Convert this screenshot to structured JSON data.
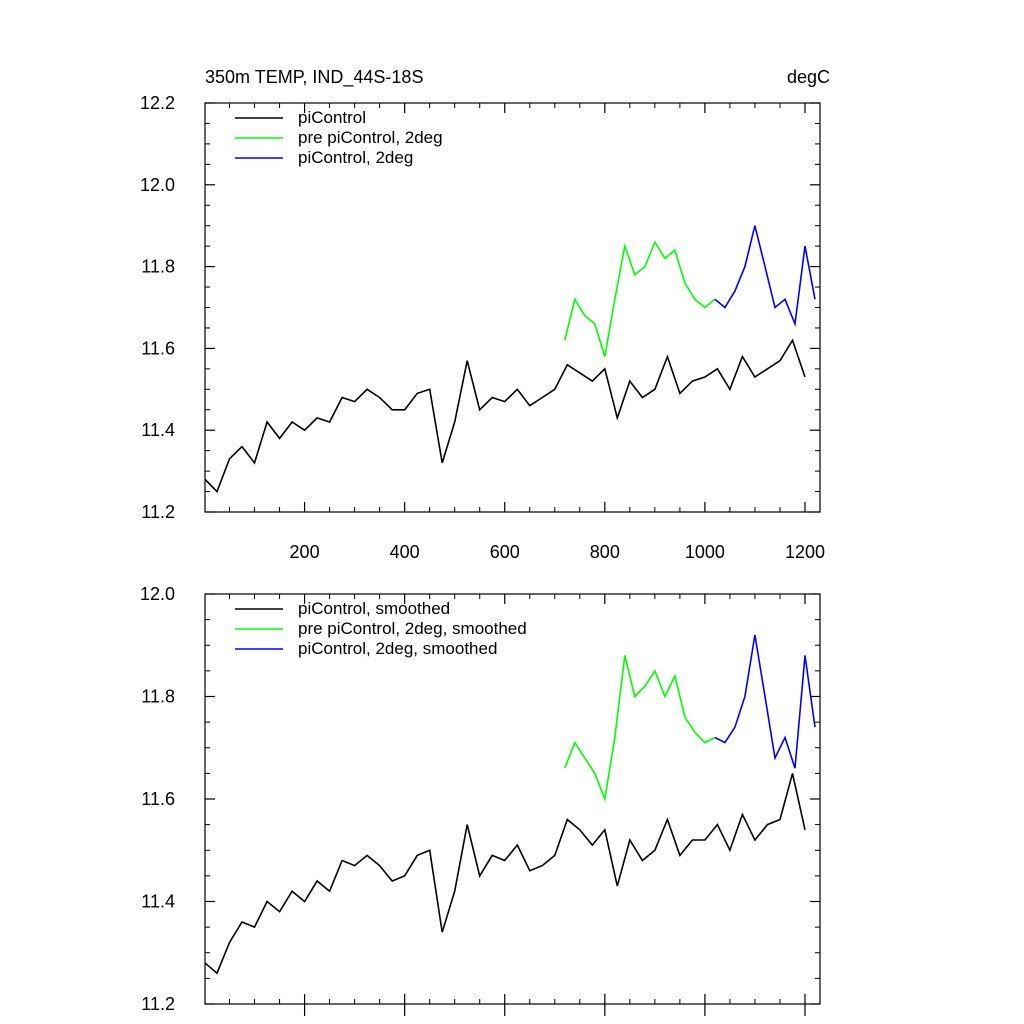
{
  "chart_data": [
    {
      "type": "line",
      "title": "350m TEMP, IND_44S-18S",
      "units": "degC",
      "xlim": [
        1,
        1230
      ],
      "ylim": [
        11.2,
        12.2
      ],
      "xticks": [
        200,
        400,
        600,
        800,
        1000,
        1200
      ],
      "yticks": [
        11.2,
        11.4,
        11.6,
        11.8,
        12.0,
        12.2
      ],
      "ytick_labels": [
        "11.2",
        "11.4",
        "11.6",
        "11.8",
        "12.0",
        "12.2"
      ],
      "legend_position": "top-left",
      "series": [
        {
          "name": "piControl",
          "color": "#000000",
          "x": [
            1,
            25,
            50,
            75,
            100,
            125,
            150,
            175,
            200,
            225,
            250,
            275,
            300,
            325,
            350,
            375,
            400,
            425,
            450,
            475,
            500,
            525,
            550,
            575,
            600,
            625,
            650,
            675,
            700,
            725,
            750,
            775,
            800,
            825,
            850,
            875,
            900,
            925,
            950,
            975,
            1000,
            1025,
            1050,
            1075,
            1100,
            1125,
            1150,
            1175,
            1200
          ],
          "y": [
            11.28,
            11.25,
            11.33,
            11.36,
            11.32,
            11.42,
            11.38,
            11.42,
            11.4,
            11.43,
            11.42,
            11.48,
            11.47,
            11.5,
            11.48,
            11.45,
            11.45,
            11.49,
            11.5,
            11.32,
            11.42,
            11.57,
            11.45,
            11.48,
            11.47,
            11.5,
            11.46,
            11.48,
            11.5,
            11.56,
            11.54,
            11.52,
            11.55,
            11.43,
            11.52,
            11.48,
            11.5,
            11.58,
            11.49,
            11.52,
            11.53,
            11.55,
            11.5,
            11.58,
            11.53,
            11.55,
            11.57,
            11.62,
            11.53
          ]
        },
        {
          "name": "pre piControl, 2deg",
          "color": "#00ff00",
          "x": [
            720,
            740,
            760,
            780,
            800,
            820,
            840,
            860,
            880,
            900,
            920,
            940,
            960,
            980,
            1000,
            1020
          ],
          "y": [
            11.62,
            11.72,
            11.68,
            11.66,
            11.58,
            11.72,
            11.85,
            11.78,
            11.8,
            11.86,
            11.82,
            11.84,
            11.76,
            11.72,
            11.7,
            11.72
          ]
        },
        {
          "name": "piControl, 2deg",
          "color": "#0000ff",
          "x": [
            1020,
            1040,
            1060,
            1080,
            1100,
            1120,
            1140,
            1160,
            1180,
            1200,
            1220
          ],
          "y": [
            11.72,
            11.7,
            11.74,
            11.8,
            11.9,
            11.8,
            11.7,
            11.72,
            11.66,
            11.85,
            11.72
          ]
        }
      ]
    },
    {
      "type": "line",
      "title": "",
      "xlim": [
        1,
        1230
      ],
      "ylim": [
        11.2,
        12.0
      ],
      "xticks": [
        200,
        400,
        600,
        800,
        1000,
        1200
      ],
      "yticks": [
        11.2,
        11.4,
        11.6,
        11.8,
        12.0
      ],
      "ytick_labels": [
        "11.2",
        "11.4",
        "11.6",
        "11.8",
        "12.0"
      ],
      "legend_position": "top-left",
      "series": [
        {
          "name": "piControl, smoothed",
          "color": "#000000",
          "x": [
            1,
            25,
            50,
            75,
            100,
            125,
            150,
            175,
            200,
            225,
            250,
            275,
            300,
            325,
            350,
            375,
            400,
            425,
            450,
            475,
            500,
            525,
            550,
            575,
            600,
            625,
            650,
            675,
            700,
            725,
            750,
            775,
            800,
            825,
            850,
            875,
            900,
            925,
            950,
            975,
            1000,
            1025,
            1050,
            1075,
            1100,
            1125,
            1150,
            1175,
            1200
          ],
          "y": [
            11.28,
            11.26,
            11.32,
            11.36,
            11.35,
            11.4,
            11.38,
            11.42,
            11.4,
            11.44,
            11.42,
            11.48,
            11.47,
            11.49,
            11.47,
            11.44,
            11.45,
            11.49,
            11.5,
            11.34,
            11.42,
            11.55,
            11.45,
            11.49,
            11.48,
            11.51,
            11.46,
            11.47,
            11.49,
            11.56,
            11.54,
            11.51,
            11.54,
            11.43,
            11.52,
            11.48,
            11.5,
            11.56,
            11.49,
            11.52,
            11.52,
            11.55,
            11.5,
            11.57,
            11.52,
            11.55,
            11.56,
            11.65,
            11.54
          ]
        },
        {
          "name": "pre piControl, 2deg, smoothed",
          "color": "#00ff00",
          "x": [
            720,
            740,
            760,
            780,
            800,
            820,
            840,
            860,
            880,
            900,
            920,
            940,
            960,
            980,
            1000,
            1020
          ],
          "y": [
            11.66,
            11.71,
            11.68,
            11.65,
            11.6,
            11.72,
            11.88,
            11.8,
            11.82,
            11.85,
            11.8,
            11.84,
            11.76,
            11.73,
            11.71,
            11.72
          ]
        },
        {
          "name": "piControl, 2deg, smoothed",
          "color": "#0000ff",
          "x": [
            1020,
            1040,
            1060,
            1080,
            1100,
            1120,
            1140,
            1160,
            1180,
            1200,
            1220
          ],
          "y": [
            11.72,
            11.71,
            11.74,
            11.8,
            11.92,
            11.8,
            11.68,
            11.72,
            11.66,
            11.88,
            11.74
          ]
        }
      ]
    }
  ]
}
